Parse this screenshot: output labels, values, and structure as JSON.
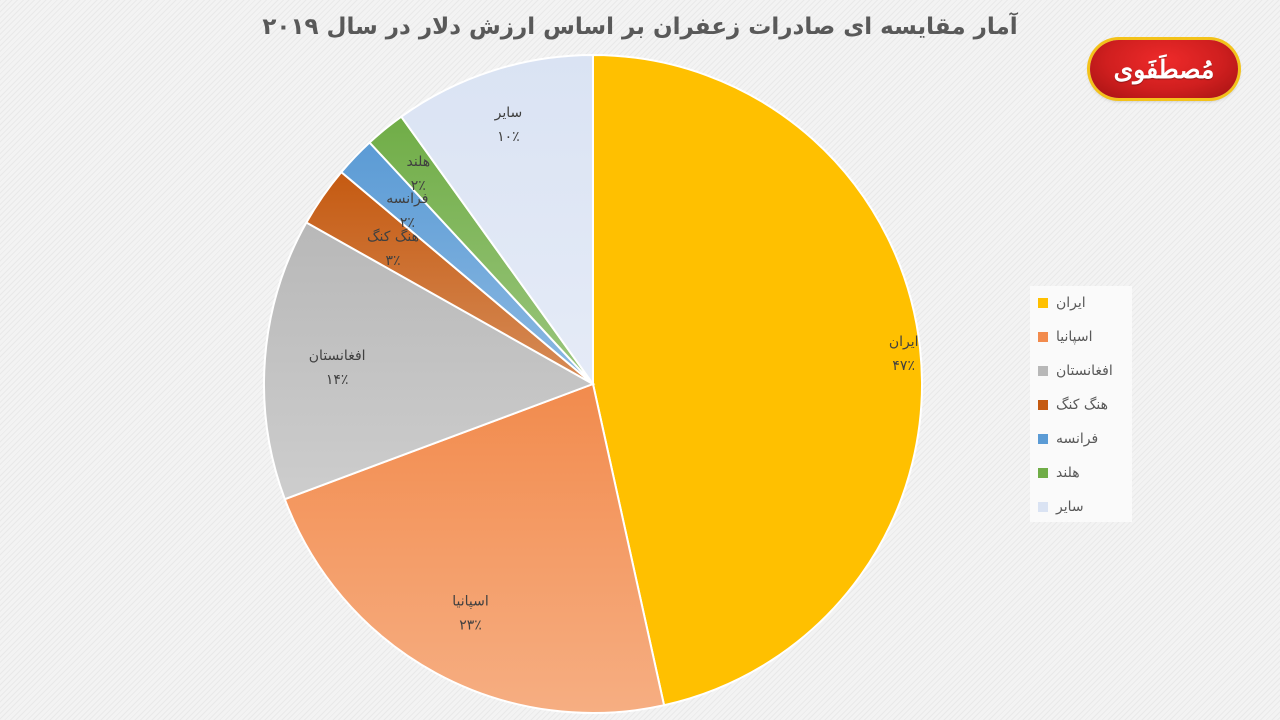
{
  "chart_data": {
    "type": "pie",
    "title": "آمار مقایسه ای صادرات زعفران بر اساس ارزش دلار در سال ۲۰۱۹",
    "categories": [
      "ایران",
      "اسپانیا",
      "افغانستان",
      "هنگ کنگ",
      "فرانسه",
      "هلند",
      "سایر"
    ],
    "values": [
      47,
      23,
      14,
      3,
      2,
      2,
      10
    ],
    "value_labels": [
      "۴۷٪",
      "۲۳٪",
      "۱۴٪",
      "۳٪",
      "۲٪",
      "۲٪",
      "۱۰٪"
    ],
    "colors": [
      "#ffc000",
      "#f28b4d",
      "#b8b8b8",
      "#c55a11",
      "#5b9bd5",
      "#70ad47",
      "#dae3f3"
    ],
    "legend_position": "right",
    "grid": false
  },
  "logo": {
    "text": "مُصطَفَوی"
  }
}
